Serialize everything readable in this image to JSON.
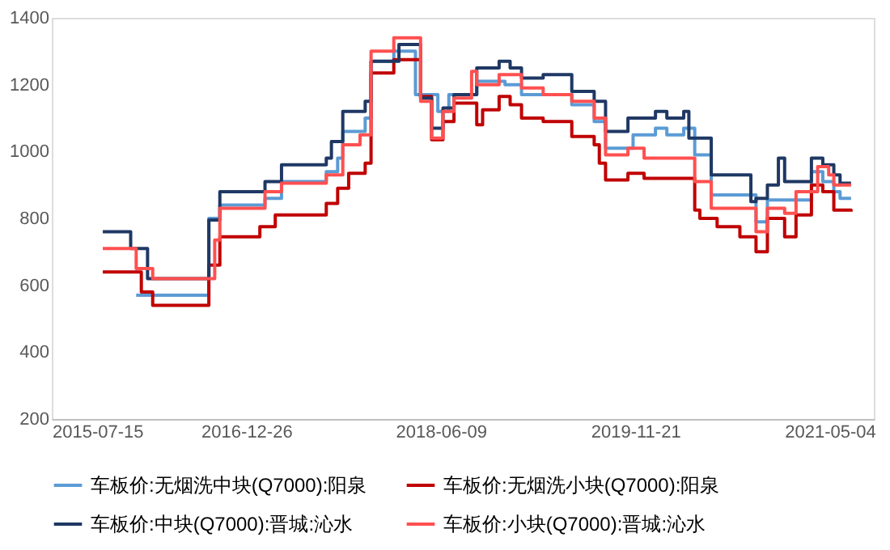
{
  "chart_data": {
    "type": "step",
    "xlim": [
      "2015-07-15",
      "2021-09-01"
    ],
    "xticks": [
      "2015-07-15",
      "2016-12-26",
      "2018-06-09",
      "2019-11-21",
      "2021-05-04"
    ],
    "ylim": [
      200,
      1400
    ],
    "yticks": [
      200,
      400,
      600,
      800,
      1000,
      1200,
      1400
    ],
    "grid": false,
    "legend": "bottom",
    "marker": "none",
    "line_style": "solid",
    "series": [
      {
        "name": "车板价:无烟洗中块(Q7000):阳泉",
        "color": "#5b9bd5",
        "x": [
          "2016-03-01",
          "2016-09-15",
          "2016-10-15",
          "2017-02-15",
          "2017-04-01",
          "2017-08-01",
          "2017-09-01",
          "2017-09-15",
          "2017-11-15",
          "2017-12-01",
          "2018-02-01",
          "2018-04-01",
          "2018-06-01",
          "2018-07-01",
          "2018-09-15",
          "2018-12-01",
          "2019-01-15",
          "2019-06-01",
          "2019-08-01",
          "2019-09-01",
          "2019-11-15",
          "2020-01-15",
          "2020-02-15",
          "2020-04-01",
          "2020-05-01",
          "2020-06-15",
          "2020-10-15",
          "2020-11-15",
          "2021-03-15",
          "2021-04-15",
          "2021-05-15",
          "2021-06-01",
          "2021-07-01"
        ],
        "values": [
          570,
          800,
          840,
          860,
          910,
          940,
          980,
          1060,
          1100,
          1270,
          1300,
          1170,
          1120,
          1170,
          1210,
          1200,
          1170,
          1140,
          1090,
          1010,
          1050,
          1070,
          1050,
          1070,
          990,
          870,
          790,
          855,
          940,
          910,
          880,
          860,
          860
        ]
      },
      {
        "name": "车板价:无烟洗小块(Q7000):阳泉",
        "color": "#c00000",
        "x": [
          "2015-12-01",
          "2016-03-15",
          "2016-04-15",
          "2016-09-15",
          "2016-10-15",
          "2017-02-01",
          "2017-03-15",
          "2017-08-01",
          "2017-09-01",
          "2017-10-01",
          "2017-11-15",
          "2017-12-01",
          "2018-02-01",
          "2018-04-15",
          "2018-05-15",
          "2018-06-15",
          "2018-07-15",
          "2018-09-15",
          "2018-10-01",
          "2018-11-15",
          "2018-12-15",
          "2019-01-15",
          "2019-03-15",
          "2019-06-01",
          "2019-08-01",
          "2019-08-15",
          "2019-09-01",
          "2019-11-01",
          "2019-12-15",
          "2020-05-01",
          "2020-05-15",
          "2020-07-01",
          "2020-09-01",
          "2020-10-15",
          "2020-11-15",
          "2021-01-01",
          "2021-02-01",
          "2021-03-15",
          "2021-04-15",
          "2021-05-15",
          "2021-07-01"
        ],
        "values": [
          640,
          580,
          540,
          660,
          745,
          775,
          810,
          845,
          890,
          935,
          965,
          1235,
          1275,
          1165,
          1035,
          1090,
          1145,
          1080,
          1125,
          1165,
          1140,
          1100,
          1090,
          1045,
          1020,
          965,
          915,
          935,
          920,
          825,
          800,
          775,
          745,
          700,
          800,
          745,
          810,
          900,
          880,
          825,
          820
        ]
      },
      {
        "name": "车板价:中块(Q7000):晋城:沁水",
        "color": "#1f3864",
        "x": [
          "2015-12-01",
          "2016-02-15",
          "2016-04-01",
          "2016-09-15",
          "2016-10-15",
          "2017-02-15",
          "2017-04-01",
          "2017-08-01",
          "2017-08-15",
          "2017-09-15",
          "2017-11-15",
          "2017-12-01",
          "2018-02-15",
          "2018-04-15",
          "2018-05-15",
          "2018-06-15",
          "2018-07-15",
          "2018-09-15",
          "2018-11-15",
          "2018-12-15",
          "2019-01-15",
          "2019-03-15",
          "2019-06-01",
          "2019-08-01",
          "2019-09-01",
          "2019-11-01",
          "2020-01-15",
          "2020-02-15",
          "2020-04-01",
          "2020-04-15",
          "2020-06-15",
          "2020-10-01",
          "2020-10-15",
          "2020-11-15",
          "2020-12-15",
          "2021-01-01",
          "2021-03-15",
          "2021-04-15",
          "2021-05-15",
          "2021-06-01",
          "2021-07-01"
        ],
        "values": [
          760,
          710,
          620,
          795,
          880,
          910,
          960,
          980,
          1030,
          1120,
          1150,
          1270,
          1320,
          1160,
          1070,
          1130,
          1170,
          1250,
          1270,
          1250,
          1220,
          1230,
          1180,
          1150,
          1060,
          1100,
          1120,
          1100,
          1120,
          1040,
          930,
          850,
          860,
          900,
          980,
          910,
          980,
          960,
          930,
          905,
          905
        ]
      },
      {
        "name": "车板价:小块(Q7000):晋城:沁水",
        "color": "#ff5050",
        "x": [
          "2015-12-01",
          "2016-03-01",
          "2016-04-15",
          "2016-10-01",
          "2016-10-15",
          "2017-02-15",
          "2017-04-01",
          "2017-08-01",
          "2017-09-15",
          "2017-11-01",
          "2017-12-01",
          "2018-02-01",
          "2018-04-15",
          "2018-05-15",
          "2018-06-15",
          "2018-07-15",
          "2018-09-01",
          "2018-09-15",
          "2018-11-15",
          "2019-01-15",
          "2019-03-15",
          "2019-06-01",
          "2019-08-01",
          "2019-09-01",
          "2019-11-01",
          "2019-12-15",
          "2020-05-01",
          "2020-06-15",
          "2020-10-15",
          "2020-11-15",
          "2021-01-01",
          "2021-02-01",
          "2021-04-01",
          "2021-05-01",
          "2021-05-15",
          "2021-07-01"
        ],
        "values": [
          710,
          650,
          620,
          735,
          830,
          880,
          905,
          930,
          1020,
          1050,
          1300,
          1340,
          1150,
          1040,
          1120,
          1160,
          1240,
          1200,
          1230,
          1190,
          1170,
          1150,
          1100,
          990,
          1010,
          980,
          910,
          830,
          760,
          830,
          815,
          880,
          955,
          930,
          900,
          900
        ]
      }
    ]
  }
}
